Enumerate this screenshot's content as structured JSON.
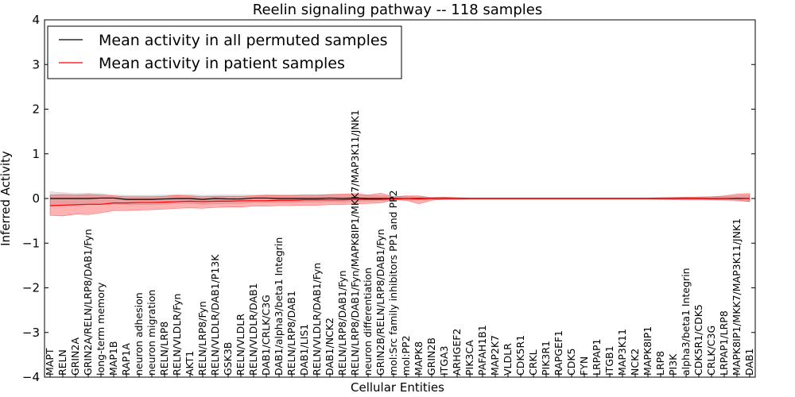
{
  "chart_data": {
    "type": "line",
    "title": "Reelin signaling pathway -- 118 samples",
    "xlabel": "Cellular Entities",
    "ylabel": "Inferred Activity",
    "ylim": [
      -4,
      4
    ],
    "yticks": [
      "−4",
      "−3",
      "−2",
      "−1",
      "0",
      "1",
      "2",
      "3",
      "4"
    ],
    "yticks_values": [
      -4,
      -3,
      -2,
      -1,
      0,
      1,
      2,
      3,
      4
    ],
    "legend_position": "top-left",
    "categories": [
      "MAPT",
      "RELN",
      "GRIN2A",
      "GRIN2A/RELN/LRP8/DAB1/Fyn",
      "long-term memory",
      "MAP1B",
      "RAP1A",
      "neuron adhesion",
      "neuron migration",
      "RELN/LRP8",
      "RELN/VLDLR/Fyn",
      "AKT1",
      "RELN/LRP8/Fyn",
      "RELN/VLDLR/DAB1/P13K",
      "GSK3B",
      "RELN/VLDLR",
      "RELN/VLDLR/DAB1",
      "DAB1/CRLK/C3G",
      "DAB1/alpha3/beta1 Integrin",
      "RELN/LRP8/DAB1",
      "DAB1/LIS1",
      "RELN/VLDLR/DAB1/Fyn",
      "DAB1/NCK2",
      "RELN/LRP8/DAB1/Fyn",
      "RELN/LRP8/DAB1/Fyn/MAPK8IP1/MKK7/MAP3K11/JNK1",
      "neuron differentiation",
      "GRIN2B/RELN/LRP8/DAB1/Fyn",
      "mol:Src family inhibitors PP1 and PP2",
      "mol:PP2",
      "MAPK8",
      "GRIN2B",
      "ITGA3",
      "ARHGEF2",
      "PIK3CA",
      "PAFAH1B1",
      "MAP2K7",
      "VLDLR",
      "CDK5R1",
      "CRKL",
      "PIK3R1",
      "RAPGEF1",
      "CDK5",
      "FYN",
      "LRPAP1",
      "ITGB1",
      "MAP3K11",
      "NCK2",
      "MAPK8IP1",
      "LRP8",
      "PI3K",
      "alpha3/beta1 Integrin",
      "CDK5R1/CDK5",
      "CRLK/C3G",
      "LRPAP1/LRP8",
      "MAPK8IP1/MKK7/MAP3K11/JNK1",
      "DAB1"
    ],
    "series": [
      {
        "name": "Mean activity in all permuted samples",
        "color": "#000000",
        "values": [
          0.0,
          0.0,
          0.0,
          0.0,
          0.01,
          0.01,
          -0.02,
          -0.02,
          -0.02,
          -0.01,
          0.0,
          0.0,
          -0.02,
          0.0,
          -0.01,
          -0.01,
          0.01,
          0.01,
          0.0,
          0.0,
          0.0,
          0.0,
          0.01,
          0.0,
          0.01,
          0.0,
          0.0,
          0.0,
          0.0,
          0.0,
          0.0,
          0.0,
          0.0,
          0.0,
          0.0,
          0.0,
          0.0,
          0.0,
          0.0,
          0.0,
          0.0,
          0.0,
          0.0,
          0.0,
          0.0,
          0.0,
          0.0,
          0.0,
          0.0,
          0.0,
          0.0,
          0.0,
          0.0,
          0.0,
          0.0,
          0.0
        ],
        "band_low": [
          -0.15,
          -0.15,
          -0.14,
          -0.13,
          -0.12,
          -0.12,
          -0.14,
          -0.14,
          -0.14,
          -0.13,
          -0.11,
          -0.11,
          -0.13,
          -0.12,
          -0.11,
          -0.11,
          -0.09,
          -0.09,
          -0.09,
          -0.09,
          -0.08,
          -0.08,
          -0.07,
          -0.08,
          -0.06,
          -0.06,
          -0.05,
          -0.03,
          -0.04,
          -0.03,
          -0.02,
          -0.02,
          -0.02,
          -0.02,
          -0.02,
          -0.02,
          -0.02,
          -0.02,
          -0.02,
          -0.02,
          -0.02,
          -0.02,
          -0.02,
          -0.02,
          -0.02,
          -0.02,
          -0.02,
          -0.02,
          -0.03,
          -0.03,
          -0.04,
          -0.04,
          -0.04,
          -0.05,
          -0.06,
          -0.07
        ],
        "band_high": [
          0.15,
          0.13,
          0.11,
          0.12,
          0.11,
          0.08,
          0.07,
          0.07,
          0.07,
          0.08,
          0.09,
          0.09,
          0.07,
          0.08,
          0.08,
          0.08,
          0.08,
          0.09,
          0.08,
          0.08,
          0.08,
          0.08,
          0.09,
          0.08,
          0.08,
          0.07,
          0.06,
          0.05,
          0.05,
          0.04,
          0.03,
          0.03,
          0.02,
          0.02,
          0.02,
          0.02,
          0.02,
          0.02,
          0.02,
          0.02,
          0.02,
          0.02,
          0.02,
          0.02,
          0.02,
          0.02,
          0.02,
          0.02,
          0.02,
          0.03,
          0.03,
          0.04,
          0.04,
          0.05,
          0.06,
          0.07
        ]
      },
      {
        "name": "Mean activity in patient samples",
        "color": "#ff0000",
        "values": [
          -0.16,
          -0.15,
          -0.14,
          -0.13,
          -0.13,
          -0.1,
          -0.1,
          -0.09,
          -0.09,
          -0.08,
          -0.07,
          -0.06,
          -0.07,
          -0.06,
          -0.06,
          -0.05,
          -0.05,
          -0.05,
          -0.04,
          -0.04,
          -0.03,
          -0.03,
          -0.03,
          -0.03,
          -0.02,
          -0.02,
          -0.02,
          -0.01,
          0.0,
          -0.01,
          0.0,
          0.0,
          0.0,
          0.0,
          0.0,
          0.0,
          0.0,
          0.0,
          0.0,
          0.0,
          0.0,
          0.0,
          0.0,
          0.0,
          0.0,
          0.0,
          0.0,
          0.0,
          0.0,
          0.0,
          0.0,
          0.0,
          0.0,
          0.0,
          0.01,
          0.0
        ],
        "band_low": [
          -0.38,
          -0.39,
          -0.35,
          -0.36,
          -0.32,
          -0.27,
          -0.27,
          -0.26,
          -0.25,
          -0.24,
          -0.22,
          -0.21,
          -0.22,
          -0.2,
          -0.19,
          -0.19,
          -0.17,
          -0.17,
          -0.16,
          -0.16,
          -0.15,
          -0.15,
          -0.14,
          -0.14,
          -0.12,
          -0.11,
          -0.1,
          -0.03,
          -0.04,
          -0.12,
          -0.04,
          -0.02,
          -0.02,
          -0.01,
          -0.01,
          -0.01,
          -0.01,
          -0.01,
          -0.01,
          -0.01,
          -0.01,
          -0.01,
          -0.01,
          -0.01,
          -0.01,
          -0.01,
          -0.01,
          -0.01,
          -0.01,
          -0.02,
          -0.02,
          -0.02,
          -0.03,
          -0.03,
          -0.04,
          -0.07
        ],
        "band_high": [
          0.08,
          0.09,
          0.08,
          0.09,
          0.08,
          0.06,
          0.04,
          0.04,
          0.04,
          0.05,
          0.07,
          0.06,
          0.04,
          0.05,
          0.05,
          0.05,
          0.06,
          0.07,
          0.07,
          0.07,
          0.08,
          0.08,
          0.09,
          0.1,
          0.11,
          0.08,
          0.12,
          0.04,
          0.06,
          0.06,
          0.02,
          0.03,
          0.02,
          0.01,
          0.01,
          0.01,
          0.01,
          0.01,
          0.01,
          0.01,
          0.01,
          0.01,
          0.01,
          0.01,
          0.01,
          0.01,
          0.01,
          0.01,
          0.02,
          0.02,
          0.03,
          0.03,
          0.04,
          0.06,
          0.1,
          0.11
        ]
      }
    ]
  }
}
